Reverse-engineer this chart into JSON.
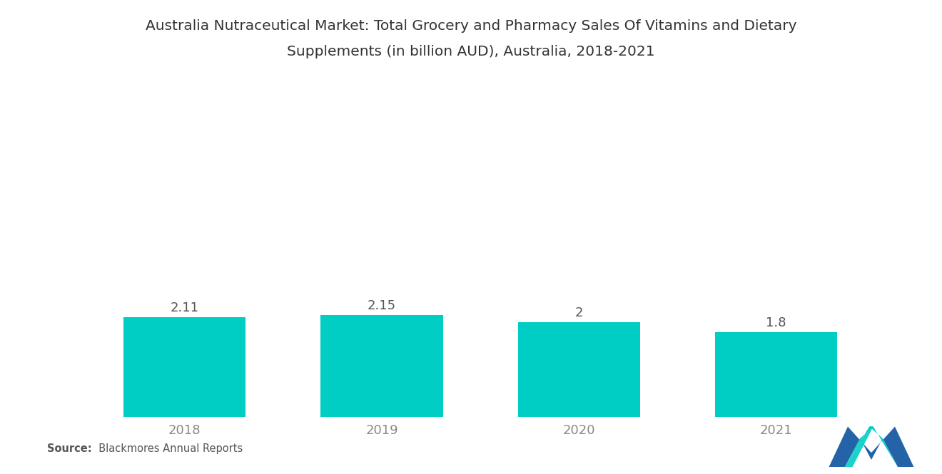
{
  "title_line1": "Australia Nutraceutical Market: Total Grocery and Pharmacy Sales Of Vitamins and Dietary",
  "title_line2": "Supplements (in billion AUD), Australia, 2018-2021",
  "categories": [
    "2018",
    "2019",
    "2020",
    "2021"
  ],
  "values": [
    2.11,
    2.15,
    2.0,
    1.8
  ],
  "bar_labels": [
    "2.11",
    "2.15",
    "2",
    "1.8"
  ],
  "bar_color": "#00CEC4",
  "background_color": "#ffffff",
  "title_fontsize": 14.5,
  "label_fontsize": 13,
  "tick_fontsize": 13,
  "source_bold": "Source:",
  "source_normal": "  Blackmores Annual Reports",
  "ylim": [
    0,
    6.0
  ],
  "bar_width": 0.62,
  "text_color": "#555555",
  "tick_color": "#888888"
}
